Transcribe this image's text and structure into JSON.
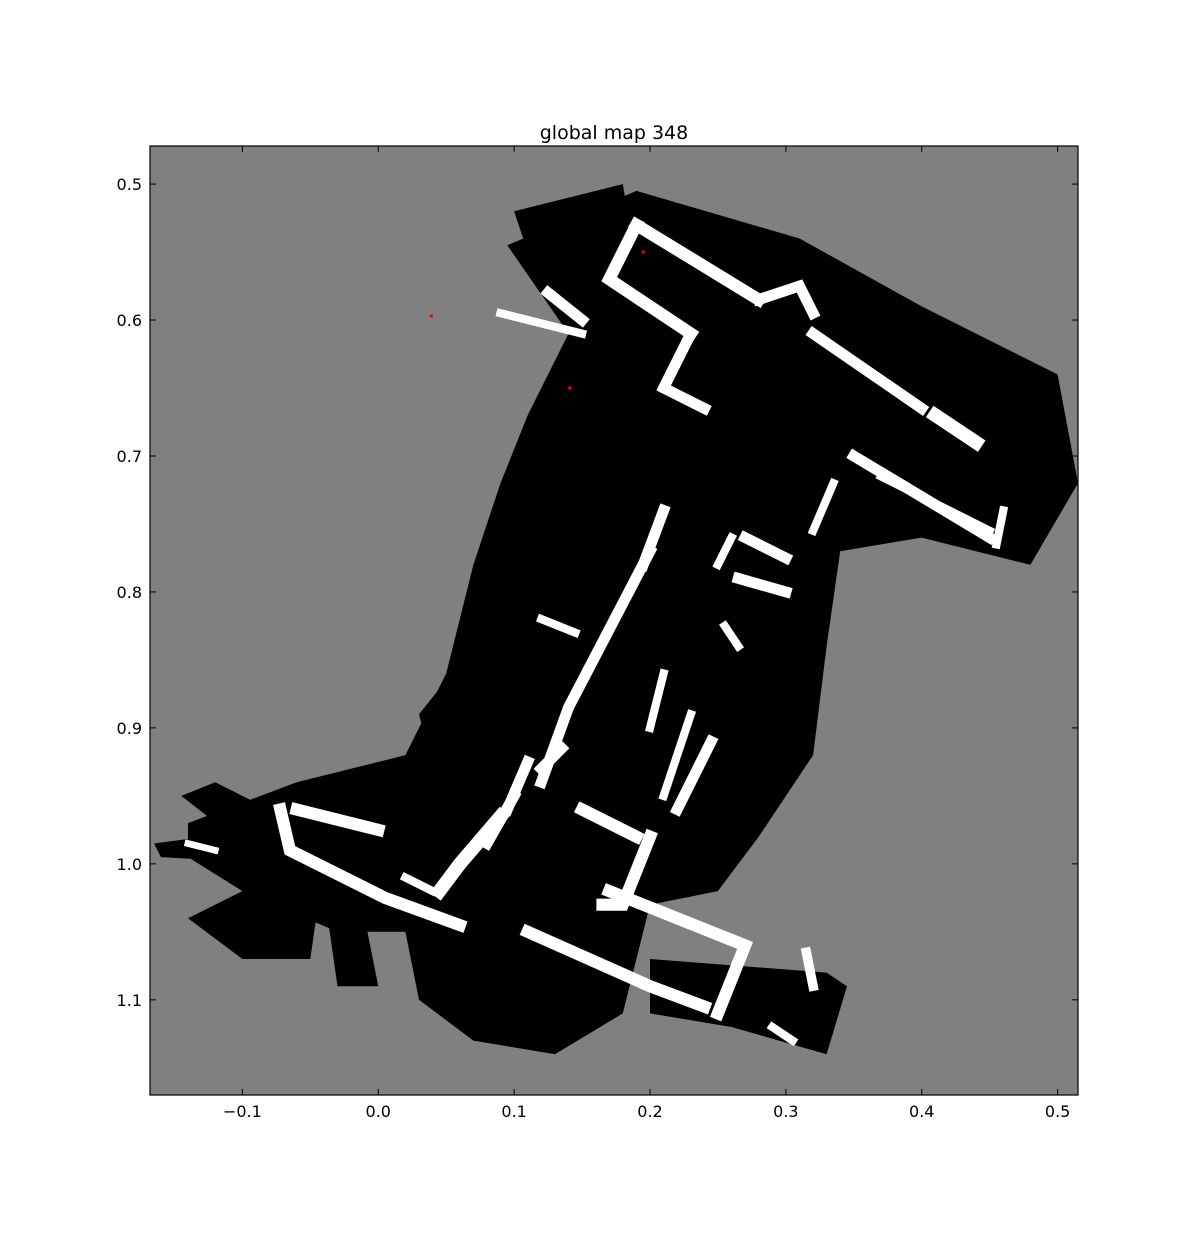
{
  "chart_data": {
    "type": "heatmap",
    "title": "global map 348",
    "xlabel": "",
    "ylabel": "",
    "xlim": [
      -0.168,
      0.515
    ],
    "ylim": [
      1.17,
      0.472
    ],
    "y_inverted": true,
    "grid": false,
    "x_ticks": [
      "−0.1",
      "0.0",
      "0.1",
      "0.2",
      "0.3",
      "0.4",
      "0.5"
    ],
    "x_tick_values": [
      -0.1,
      0.0,
      0.1,
      0.2,
      0.3,
      0.4,
      0.5
    ],
    "y_ticks": [
      "0.5",
      "0.6",
      "0.7",
      "0.8",
      "0.9",
      "1.0",
      "1.1"
    ],
    "y_tick_values": [
      0.5,
      0.6,
      0.7,
      0.8,
      0.9,
      1.0,
      1.1
    ],
    "colors": {
      "unknown": "#808080",
      "free": "#000000",
      "wall": "#ffffff",
      "partial": "#1e1e1e",
      "marker": "#ff0000"
    },
    "free_regions": [
      [
        [
          0.095,
          0.545
        ],
        [
          0.19,
          0.505
        ],
        [
          0.31,
          0.54
        ],
        [
          0.4,
          0.59
        ],
        [
          0.5,
          0.64
        ],
        [
          0.515,
          0.72
        ],
        [
          0.48,
          0.78
        ],
        [
          0.4,
          0.76
        ],
        [
          0.34,
          0.77
        ],
        [
          0.33,
          0.84
        ],
        [
          0.32,
          0.92
        ],
        [
          0.28,
          0.98
        ],
        [
          0.25,
          1.02
        ],
        [
          0.2,
          1.03
        ],
        [
          0.18,
          1.11
        ],
        [
          0.13,
          1.14
        ],
        [
          0.07,
          1.13
        ],
        [
          0.03,
          1.1
        ],
        [
          0.02,
          1.05
        ],
        [
          -0.03,
          1.05
        ],
        [
          -0.1,
          1.02
        ],
        [
          -0.14,
          0.995
        ],
        [
          -0.14,
          0.97
        ],
        [
          -0.06,
          0.94
        ],
        [
          0.02,
          0.92
        ],
        [
          0.05,
          0.86
        ],
        [
          0.07,
          0.78
        ],
        [
          0.09,
          0.72
        ],
        [
          0.11,
          0.67
        ],
        [
          0.14,
          0.61
        ]
      ],
      [
        [
          -0.165,
          0.985
        ],
        [
          -0.09,
          0.975
        ],
        [
          -0.07,
          1.0
        ],
        [
          -0.16,
          0.995
        ]
      ],
      [
        [
          -0.145,
          0.95
        ],
        [
          -0.12,
          0.94
        ],
        [
          -0.06,
          0.97
        ],
        [
          -0.1,
          0.985
        ]
      ],
      [
        [
          -0.14,
          1.04
        ],
        [
          -0.08,
          1.01
        ],
        [
          -0.04,
          1.0
        ],
        [
          -0.05,
          1.07
        ],
        [
          -0.1,
          1.07
        ]
      ],
      [
        [
          -0.04,
          1.02
        ],
        [
          -0.01,
          1.04
        ],
        [
          0.0,
          1.09
        ],
        [
          -0.03,
          1.09
        ]
      ],
      [
        [
          0.2,
          1.07
        ],
        [
          0.33,
          1.08
        ],
        [
          0.345,
          1.09
        ],
        [
          0.33,
          1.14
        ],
        [
          0.26,
          1.12
        ],
        [
          0.2,
          1.11
        ]
      ],
      [
        [
          0.1,
          0.52
        ],
        [
          0.18,
          0.5
        ],
        [
          0.19,
          0.56
        ],
        [
          0.15,
          0.59
        ],
        [
          0.12,
          0.58
        ]
      ],
      [
        [
          0.07,
          0.84
        ],
        [
          0.15,
          0.78
        ],
        [
          0.14,
          0.9
        ],
        [
          0.04,
          0.93
        ],
        [
          0.03,
          0.89
        ]
      ],
      [
        [
          0.12,
          0.66
        ],
        [
          0.2,
          0.64
        ],
        [
          0.17,
          0.73
        ],
        [
          0.11,
          0.72
        ]
      ]
    ],
    "walls": [
      {
        "points": [
          [
            0.19,
            0.53
          ],
          [
            0.28,
            0.585
          ]
        ],
        "w": 0.009
      },
      {
        "points": [
          [
            0.28,
            0.585
          ],
          [
            0.31,
            0.575
          ],
          [
            0.32,
            0.595
          ]
        ],
        "w": 0.008
      },
      {
        "points": [
          [
            0.32,
            0.61
          ],
          [
            0.4,
            0.665
          ]
        ],
        "w": 0.008
      },
      {
        "points": [
          [
            0.35,
            0.7
          ],
          [
            0.45,
            0.76
          ]
        ],
        "w": 0.008
      },
      {
        "points": [
          [
            0.19,
            0.53
          ],
          [
            0.17,
            0.57
          ],
          [
            0.23,
            0.61
          ]
        ],
        "w": 0.009
      },
      {
        "points": [
          [
            0.23,
            0.61
          ],
          [
            0.21,
            0.65
          ],
          [
            0.24,
            0.665
          ]
        ],
        "w": 0.008
      },
      {
        "points": [
          [
            0.09,
            0.965
          ],
          [
            0.06,
            1.0
          ],
          [
            0.045,
            1.02
          ]
        ],
        "w": 0.01
      },
      {
        "points": [
          [
            0.2,
            0.77
          ],
          [
            0.14,
            0.885
          ],
          [
            0.12,
            0.94
          ]
        ],
        "w": 0.008
      },
      {
        "points": [
          [
            0.21,
            0.74
          ],
          [
            0.195,
            0.78
          ]
        ],
        "w": 0.008
      },
      {
        "points": [
          [
            0.1,
            0.95
          ],
          [
            0.08,
            0.985
          ]
        ],
        "w": 0.008
      },
      {
        "points": [
          [
            0.11,
            0.925
          ],
          [
            0.095,
            0.96
          ]
        ],
        "w": 0.008
      },
      {
        "points": [
          [
            0.135,
            0.915
          ],
          [
            0.12,
            0.93
          ]
        ],
        "w": 0.008
      },
      {
        "points": [
          [
            0.12,
            0.82
          ],
          [
            0.145,
            0.83
          ]
        ],
        "w": 0.006
      },
      {
        "points": [
          [
            -0.072,
            0.96
          ],
          [
            -0.065,
            0.99
          ],
          [
            0.005,
            1.025
          ],
          [
            0.06,
            1.045
          ]
        ],
        "w": 0.009
      },
      {
        "points": [
          [
            -0.06,
            0.96
          ],
          [
            0.0,
            0.975
          ]
        ],
        "w": 0.009
      },
      {
        "points": [
          [
            0.02,
            1.01
          ],
          [
            0.04,
            1.02
          ]
        ],
        "w": 0.006
      },
      {
        "points": [
          [
            0.11,
            1.05
          ],
          [
            0.2,
            1.09
          ],
          [
            0.24,
            1.105
          ]
        ],
        "w": 0.009
      },
      {
        "points": [
          [
            0.17,
            1.02
          ],
          [
            0.27,
            1.06
          ],
          [
            0.25,
            1.11
          ]
        ],
        "w": 0.009
      },
      {
        "points": [
          [
            0.2,
            0.98
          ],
          [
            0.18,
            1.03
          ],
          [
            0.165,
            1.03
          ]
        ],
        "w": 0.009
      },
      {
        "points": [
          [
            0.15,
            0.96
          ],
          [
            0.19,
            0.98
          ]
        ],
        "w": 0.009
      },
      {
        "points": [
          [
            0.27,
            0.76
          ],
          [
            0.3,
            0.775
          ]
        ],
        "w": 0.008
      },
      {
        "points": [
          [
            0.265,
            0.79
          ],
          [
            0.3,
            0.8
          ]
        ],
        "w": 0.008
      },
      {
        "points": [
          [
            0.26,
            0.76
          ],
          [
            0.25,
            0.78
          ]
        ],
        "w": 0.006
      },
      {
        "points": [
          [
            0.245,
            0.91
          ],
          [
            0.22,
            0.96
          ]
        ],
        "w": 0.008
      },
      {
        "points": [
          [
            0.23,
            0.89
          ],
          [
            0.21,
            0.95
          ]
        ],
        "w": 0.006
      },
      {
        "points": [
          [
            0.21,
            0.86
          ],
          [
            0.2,
            0.9
          ]
        ],
        "w": 0.006
      },
      {
        "points": [
          [
            0.15,
            0.6
          ],
          [
            0.125,
            0.58
          ]
        ],
        "w": 0.008
      },
      {
        "points": [
          [
            0.09,
            0.595
          ],
          [
            0.15,
            0.61
          ]
        ],
        "w": 0.006
      },
      {
        "points": [
          [
            0.335,
            0.72
          ],
          [
            0.32,
            0.755
          ]
        ],
        "w": 0.006
      },
      {
        "points": [
          [
            0.37,
            0.715
          ],
          [
            0.45,
            0.755
          ]
        ],
        "w": 0.006
      },
      {
        "points": [
          [
            0.41,
            0.67
          ],
          [
            0.44,
            0.69
          ]
        ],
        "w": 0.01
      },
      {
        "points": [
          [
            0.46,
            0.74
          ],
          [
            0.455,
            0.765
          ]
        ],
        "w": 0.006
      },
      {
        "points": [
          [
            0.315,
            1.065
          ],
          [
            0.32,
            1.09
          ]
        ],
        "w": 0.007
      },
      {
        "points": [
          [
            0.29,
            1.12
          ],
          [
            0.305,
            1.13
          ]
        ],
        "w": 0.006
      },
      {
        "points": [
          [
            0.255,
            0.825
          ],
          [
            0.265,
            0.84
          ]
        ],
        "w": 0.006
      },
      {
        "points": [
          [
            -0.14,
            0.985
          ],
          [
            -0.12,
            0.99
          ]
        ],
        "w": 0.005
      }
    ],
    "markers": [
      {
        "x": 0.039,
        "y": 0.597
      },
      {
        "x": 0.141,
        "y": 0.65
      },
      {
        "x": 0.195,
        "y": 0.55
      }
    ]
  }
}
